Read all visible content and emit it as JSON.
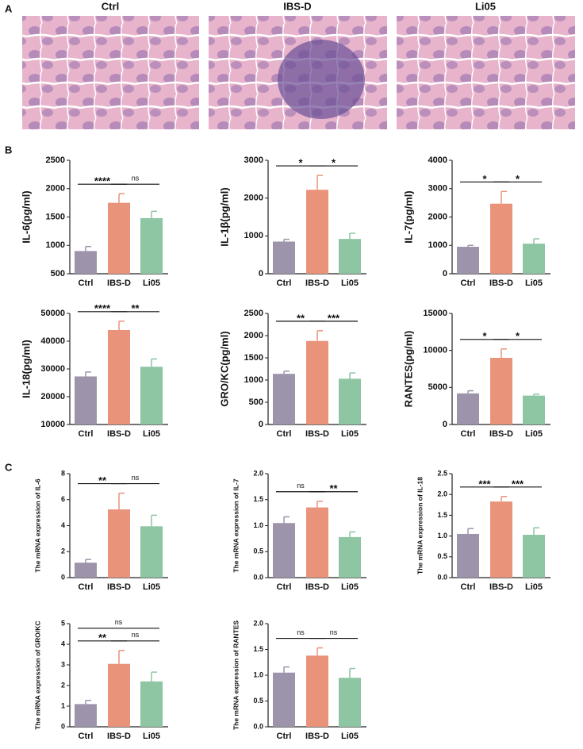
{
  "panel_labels": [
    "A",
    "B",
    "C"
  ],
  "histology": {
    "titles": [
      "Ctrl",
      "IBS-D",
      "Li05"
    ]
  },
  "chart_data": [
    {
      "type": "bar",
      "ylabel": "IL-6(pg/ml)",
      "categories": [
        "Ctrl",
        "IBS-D",
        "Li05"
      ],
      "values": [
        900,
        1750,
        1480
      ],
      "errors": [
        80,
        160,
        120
      ],
      "colors": [
        "#9d93aa",
        "#e8937a",
        "#8ec5a3"
      ],
      "ylim": [
        500,
        2500
      ],
      "yticks": [
        500,
        1000,
        1500,
        2000,
        2500
      ],
      "significance": [
        {
          "pair": [
            "Ctrl",
            "IBS-D"
          ],
          "label": "****"
        },
        {
          "pair": [
            "IBS-D",
            "Li05"
          ],
          "label": "ns"
        }
      ]
    },
    {
      "type": "bar",
      "ylabel": "IL-1β(pg/ml)",
      "categories": [
        "Ctrl",
        "IBS-D",
        "Li05"
      ],
      "values": [
        850,
        2220,
        920
      ],
      "errors": [
        60,
        380,
        150
      ],
      "colors": [
        "#9d93aa",
        "#e8937a",
        "#8ec5a3"
      ],
      "ylim": [
        0,
        3000
      ],
      "yticks": [
        0,
        1000,
        2000,
        3000
      ],
      "significance": [
        {
          "pair": [
            "Ctrl",
            "IBS-D"
          ],
          "label": "*"
        },
        {
          "pair": [
            "IBS-D",
            "Li05"
          ],
          "label": "*"
        }
      ]
    },
    {
      "type": "bar",
      "ylabel": "IL-7(pg/ml)",
      "categories": [
        "Ctrl",
        "IBS-D",
        "Li05"
      ],
      "values": [
        950,
        2470,
        1060
      ],
      "errors": [
        50,
        430,
        170
      ],
      "colors": [
        "#9d93aa",
        "#e8937a",
        "#8ec5a3"
      ],
      "ylim": [
        0,
        4000
      ],
      "yticks": [
        0,
        1000,
        2000,
        3000,
        4000
      ],
      "significance": [
        {
          "pair": [
            "Ctrl",
            "IBS-D"
          ],
          "label": "*"
        },
        {
          "pair": [
            "IBS-D",
            "Li05"
          ],
          "label": "*"
        }
      ]
    },
    {
      "type": "bar",
      "ylabel": "IL-18(pg/ml)",
      "categories": [
        "Ctrl",
        "IBS-D",
        "Li05"
      ],
      "values": [
        27300,
        44000,
        30800
      ],
      "errors": [
        1600,
        3200,
        2800
      ],
      "colors": [
        "#9d93aa",
        "#e8937a",
        "#8ec5a3"
      ],
      "ylim": [
        10000,
        50000
      ],
      "yticks": [
        10000,
        20000,
        30000,
        40000,
        50000
      ],
      "significance": [
        {
          "pair": [
            "Ctrl",
            "IBS-D"
          ],
          "label": "****"
        },
        {
          "pair": [
            "IBS-D",
            "Li05"
          ],
          "label": "**"
        }
      ]
    },
    {
      "type": "bar",
      "ylabel": "GRO/KC(pg/ml)",
      "categories": [
        "Ctrl",
        "IBS-D",
        "Li05"
      ],
      "values": [
        1140,
        1880,
        1030
      ],
      "errors": [
        60,
        230,
        130
      ],
      "colors": [
        "#9d93aa",
        "#e8937a",
        "#8ec5a3"
      ],
      "ylim": [
        0,
        2500
      ],
      "yticks": [
        0,
        500,
        1000,
        1500,
        2000,
        2500
      ],
      "significance": [
        {
          "pair": [
            "Ctrl",
            "IBS-D"
          ],
          "label": "**"
        },
        {
          "pair": [
            "IBS-D",
            "Li05"
          ],
          "label": "***"
        }
      ]
    },
    {
      "type": "bar",
      "ylabel": "RANTES(pg/ml)",
      "categories": [
        "Ctrl",
        "IBS-D",
        "Li05"
      ],
      "values": [
        4200,
        9000,
        3900
      ],
      "errors": [
        350,
        1200,
        200
      ],
      "colors": [
        "#9d93aa",
        "#e8937a",
        "#8ec5a3"
      ],
      "ylim": [
        0,
        15000
      ],
      "yticks": [
        0,
        5000,
        10000,
        15000
      ],
      "significance": [
        {
          "pair": [
            "Ctrl",
            "IBS-D"
          ],
          "label": "*"
        },
        {
          "pair": [
            "IBS-D",
            "Li05"
          ],
          "label": "*"
        }
      ]
    },
    {
      "type": "bar",
      "ylabel": "The mRNA expression of IL-6",
      "categories": [
        "Ctrl",
        "IBS-D",
        "Li05"
      ],
      "values": [
        1.15,
        5.25,
        3.95
      ],
      "errors": [
        0.25,
        1.25,
        0.85
      ],
      "colors": [
        "#9d93aa",
        "#e8937a",
        "#8ec5a3"
      ],
      "ylim": [
        0,
        8
      ],
      "yticks": [
        0,
        2,
        4,
        6,
        8
      ],
      "significance": [
        {
          "pair": [
            "Ctrl",
            "IBS-D"
          ],
          "label": "**"
        },
        {
          "pair": [
            "IBS-D",
            "Li05"
          ],
          "label": "ns"
        }
      ]
    },
    {
      "type": "bar",
      "ylabel": "The mRNA expression of IL-7",
      "categories": [
        "Ctrl",
        "IBS-D",
        "Li05"
      ],
      "values": [
        1.05,
        1.35,
        0.78
      ],
      "errors": [
        0.12,
        0.12,
        0.1
      ],
      "colors": [
        "#9d93aa",
        "#e8937a",
        "#8ec5a3"
      ],
      "ylim": [
        0,
        2
      ],
      "yticks": [
        {
          "value": 0,
          "label": "0.0"
        },
        0.5,
        {
          "value": 1,
          "label": "1.0"
        },
        1.5,
        {
          "value": 2,
          "label": "2.0"
        }
      ],
      "significance": [
        {
          "pair": [
            "Ctrl",
            "IBS-D"
          ],
          "label": "ns"
        },
        {
          "pair": [
            "IBS-D",
            "Li05"
          ],
          "label": "**"
        }
      ]
    },
    {
      "type": "bar",
      "ylabel": "The mRNA expression of IL-18",
      "categories": [
        "Ctrl",
        "IBS-D",
        "Li05"
      ],
      "values": [
        1.05,
        1.83,
        1.03
      ],
      "errors": [
        0.13,
        0.12,
        0.17
      ],
      "colors": [
        "#9d93aa",
        "#e8937a",
        "#8ec5a3"
      ],
      "ylim": [
        0,
        2.5
      ],
      "yticks": [
        {
          "value": 0,
          "label": "0.0"
        },
        0.5,
        {
          "value": 1,
          "label": "1.0"
        },
        1.5,
        {
          "value": 2,
          "label": "2.0"
        },
        2.5
      ],
      "significance": [
        {
          "pair": [
            "Ctrl",
            "IBS-D"
          ],
          "label": "***"
        },
        {
          "pair": [
            "IBS-D",
            "Li05"
          ],
          "label": "***"
        }
      ]
    },
    {
      "type": "bar",
      "ylabel": "The mRNA expression of GRO/KC",
      "categories": [
        "Ctrl",
        "IBS-D",
        "Li05"
      ],
      "values": [
        1.1,
        3.05,
        2.2
      ],
      "errors": [
        0.18,
        0.65,
        0.45
      ],
      "colors": [
        "#9d93aa",
        "#e8937a",
        "#8ec5a3"
      ],
      "ylim": [
        0,
        5
      ],
      "yticks": [
        0,
        1,
        2,
        3,
        4,
        5
      ],
      "significance": [
        {
          "pair": [
            "Ctrl",
            "IBS-D"
          ],
          "label": "**"
        },
        {
          "pair": [
            "IBS-D",
            "Li05"
          ],
          "label": "ns"
        },
        {
          "pair": [
            "Ctrl",
            "Li05"
          ],
          "label": "ns"
        }
      ]
    },
    {
      "type": "bar",
      "ylabel": "The mRNA expression of RANTES",
      "categories": [
        "Ctrl",
        "IBS-D",
        "Li05"
      ],
      "values": [
        1.05,
        1.38,
        0.95
      ],
      "errors": [
        0.11,
        0.15,
        0.18
      ],
      "colors": [
        "#9d93aa",
        "#e8937a",
        "#8ec5a3"
      ],
      "ylim": [
        0,
        2
      ],
      "yticks": [
        {
          "value": 0,
          "label": "0.0"
        },
        0.5,
        {
          "value": 1,
          "label": "1.0"
        },
        1.5,
        {
          "value": 2,
          "label": "2.0"
        }
      ],
      "significance": [
        {
          "pair": [
            "Ctrl",
            "IBS-D"
          ],
          "label": "ns"
        },
        {
          "pair": [
            "IBS-D",
            "Li05"
          ],
          "label": "ns"
        }
      ]
    }
  ]
}
